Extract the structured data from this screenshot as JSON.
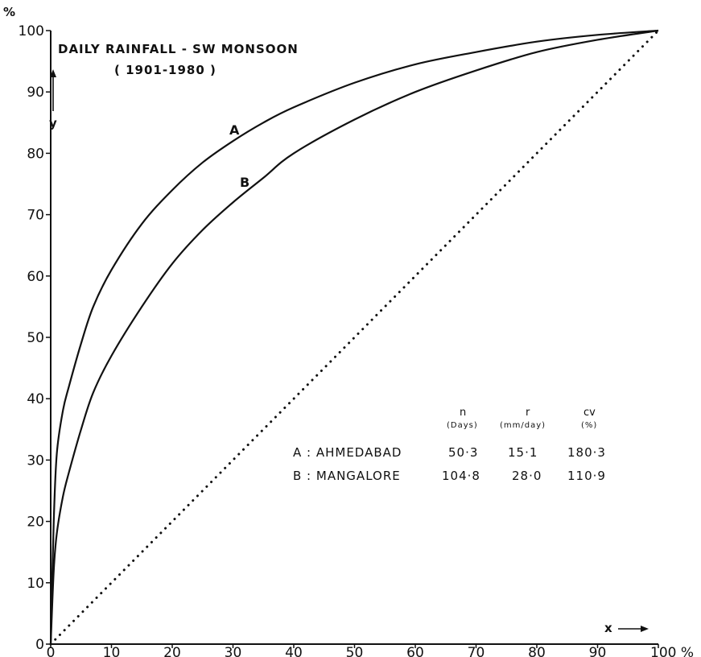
{
  "chart_data": {
    "type": "line",
    "title": "DAILY RAINFALL - SW MONSOON",
    "subtitle": "( 1901-1980 )",
    "xlabel": "x",
    "ylabel": "y",
    "x_unit": "%",
    "y_unit": "%",
    "xlim": [
      0,
      100
    ],
    "ylim": [
      0,
      100
    ],
    "x_ticks": [
      0,
      10,
      20,
      30,
      40,
      50,
      60,
      70,
      80,
      90,
      100
    ],
    "y_ticks": [
      0,
      10,
      20,
      30,
      40,
      50,
      60,
      70,
      80,
      90,
      100
    ],
    "x_tick_labels": [
      "0",
      "10",
      "20",
      "30",
      "40",
      "50",
      "60",
      "70",
      "80",
      "90",
      "100 %"
    ],
    "y_tick_labels": [
      "0",
      "10",
      "20",
      "30",
      "40",
      "50",
      "60",
      "70",
      "80",
      "90",
      "100"
    ],
    "grid": false,
    "series": [
      {
        "name": "A",
        "style": "solid",
        "x": [
          0,
          0.5,
          1,
          2,
          3,
          5,
          7,
          10,
          15,
          20,
          25,
          30,
          35,
          40,
          50,
          60,
          70,
          80,
          90,
          100
        ],
        "y": [
          0,
          20,
          31,
          38,
          42,
          49,
          55,
          61,
          68.5,
          74,
          78.5,
          82,
          85,
          87.5,
          91.5,
          94.5,
          96.5,
          98.2,
          99.3,
          100
        ]
      },
      {
        "name": "B",
        "style": "solid",
        "x": [
          0,
          0.5,
          1,
          2,
          3,
          5,
          7,
          10,
          15,
          20,
          25,
          30,
          35,
          40,
          50,
          60,
          70,
          80,
          90,
          100
        ],
        "y": [
          0,
          12,
          18,
          24,
          28,
          35,
          41,
          47,
          55,
          62,
          67.5,
          72,
          76,
          80,
          85.5,
          90,
          93.5,
          96.5,
          98.5,
          100
        ]
      },
      {
        "name": "",
        "style": "dotted",
        "x": [
          0,
          100
        ],
        "y": [
          0,
          100
        ]
      }
    ],
    "annotations": {
      "curve_a": "A",
      "curve_b": "B",
      "table": {
        "headers": [
          "n",
          "r",
          "cv"
        ],
        "subheaders": [
          "(Days)",
          "(mm/day)",
          "(%)"
        ],
        "rows": [
          [
            "A : AHMEDABAD",
            "50·3",
            "15·1",
            "180·3"
          ],
          [
            "B : MANGALORE",
            "104·8",
            "28·0",
            "110·9"
          ]
        ]
      }
    }
  }
}
